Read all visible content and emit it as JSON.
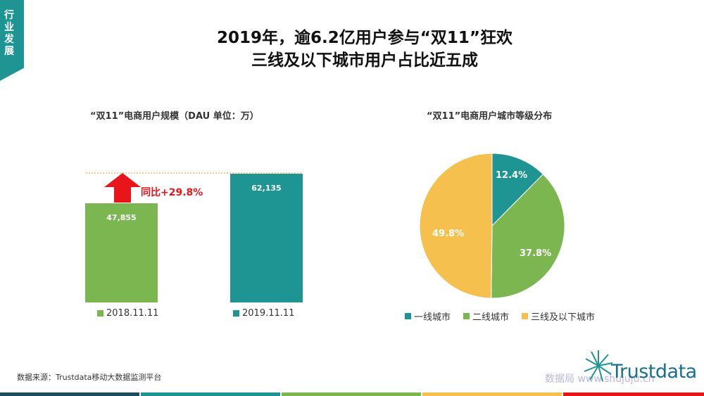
{
  "page": {
    "tag": "行业发展",
    "title_line1": "2019年，逾6.2亿用户参与“双11”狂欢",
    "title_line2": "三线及以下城市用户占比近五成",
    "source": "数据来源：Trustdata移动大数据监测平台",
    "logo_text": "Trustdata",
    "watermark": "数据局 www.shujuju.cn"
  },
  "colors": {
    "teal": "#1f9593",
    "green": "#7bb650",
    "yellow": "#f6c04f",
    "red": "#e8161b"
  },
  "chart_data": [
    {
      "type": "bar",
      "title": "“双11”电商用户规模（DAU 单位：万）",
      "categories": [
        "2018.11.11",
        "2019.11.11"
      ],
      "values": [
        47855,
        62135
      ],
      "value_labels": [
        "47,855",
        "62,135"
      ],
      "ylim": [
        0,
        62135
      ],
      "annotation": "同比+29.8%",
      "legend_position": "bottom"
    },
    {
      "type": "pie",
      "title": "“双11”电商用户城市等级分布",
      "labels": [
        "一线城市",
        "二线城市",
        "三线及以下城市"
      ],
      "values": [
        12.4,
        37.8,
        49.8
      ],
      "value_labels": [
        "12.4%",
        "37.8%",
        "49.8%"
      ],
      "legend_position": "bottom"
    }
  ]
}
